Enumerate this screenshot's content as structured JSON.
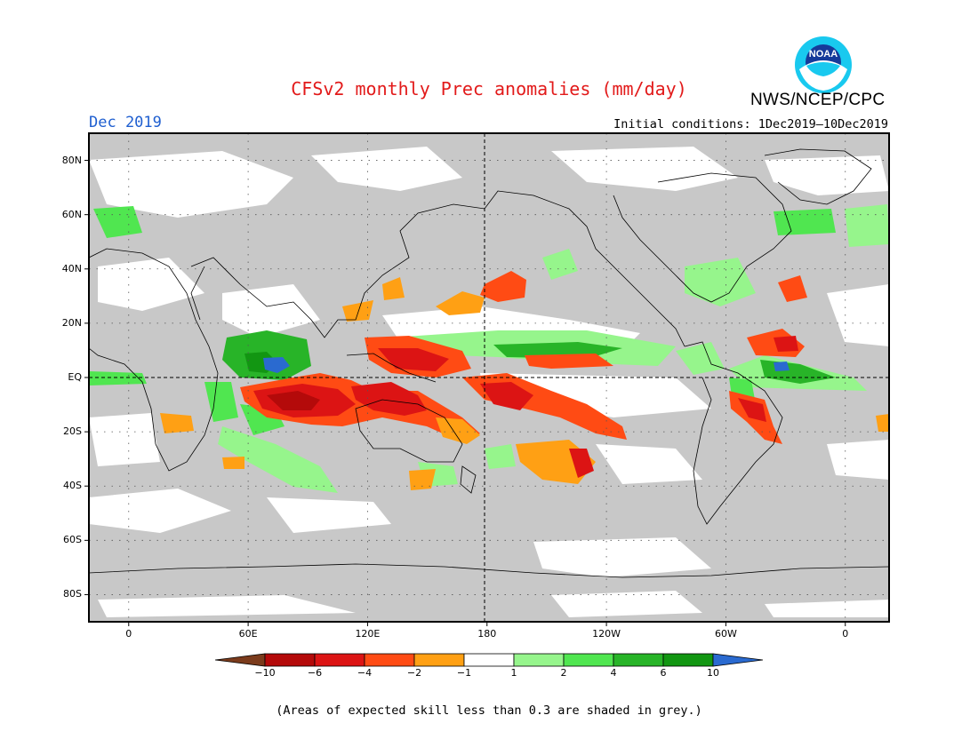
{
  "title": "CFSv2 monthly Prec anomalies (mm/day)",
  "agency": "NWS/NCEP/CPC",
  "logo_text": "NOAA",
  "month": "Dec 2019",
  "initial_conditions": "Initial conditions: 1Dec2019—10Dec2019",
  "note": "(Areas of expected skill less than 0.3 are shaded in grey.)",
  "map": {
    "projection": "equirectangular",
    "lon_range": [
      -20,
      382
    ],
    "lat_range": [
      -90,
      90
    ],
    "lat_ticks": [
      {
        "value": 80,
        "label": "80N"
      },
      {
        "value": 60,
        "label": "60N"
      },
      {
        "value": 40,
        "label": "40N"
      },
      {
        "value": 20,
        "label": "20N"
      },
      {
        "value": 0,
        "label": "EQ"
      },
      {
        "value": -20,
        "label": "20S"
      },
      {
        "value": -40,
        "label": "40S"
      },
      {
        "value": -60,
        "label": "60S"
      },
      {
        "value": -80,
        "label": "80S"
      }
    ],
    "lon_ticks": [
      {
        "value": 0,
        "label": "0"
      },
      {
        "value": 60,
        "label": "60E"
      },
      {
        "value": 120,
        "label": "120E"
      },
      {
        "value": 180,
        "label": "180"
      },
      {
        "value": 240,
        "label": "120W"
      },
      {
        "value": 300,
        "label": "60W"
      },
      {
        "value": 360,
        "label": "0"
      }
    ],
    "colors": {
      "grey": "#c8c8c8",
      "skill_white": "#ffffff",
      "dry_lt10": "#7b3b1c",
      "dry_6_10": "#b40a0a",
      "dry_4_6": "#dc1414",
      "dry_2_4": "#ff4b14",
      "dry_1_2": "#ffa014",
      "wet_1_2": "#96f58c",
      "wet_2_4": "#50e650",
      "wet_4_6": "#28b428",
      "wet_6_10": "#129612",
      "wet_gt10": "#2a6ad0"
    }
  },
  "colorbar": {
    "labels": [
      "−10",
      "−6",
      "−4",
      "−2",
      "−1",
      "1",
      "2",
      "4",
      "6",
      "10"
    ],
    "colors": [
      "#7b3b1c",
      "#b40a0a",
      "#dc1414",
      "#ff4b14",
      "#ffa014",
      "#ffffff",
      "#96f58c",
      "#50e650",
      "#28b428",
      "#129612",
      "#2a6ad0"
    ]
  }
}
